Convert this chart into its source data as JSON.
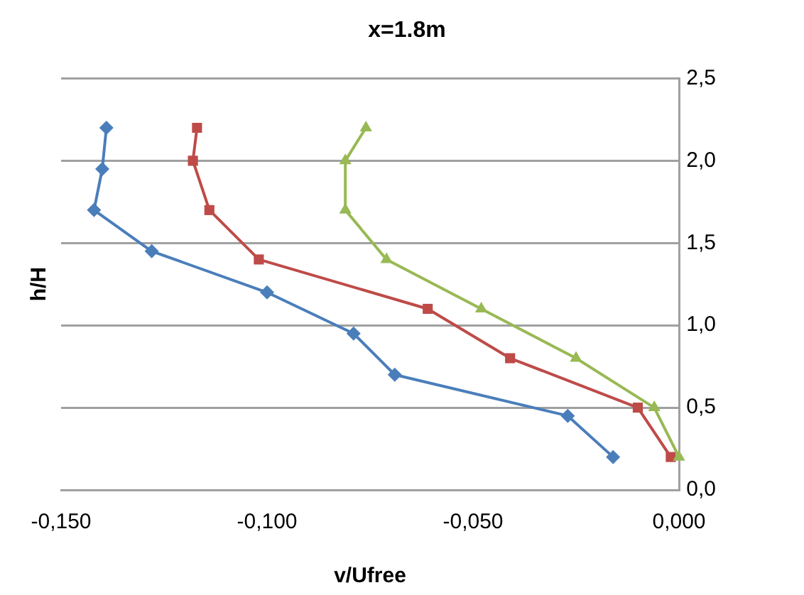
{
  "chart_data": {
    "type": "line",
    "title": "x=1.8m",
    "xlabel": "v/Ufree",
    "ylabel": "h/H",
    "xlim": [
      -0.15,
      0
    ],
    "xticks": [
      {
        "value": -0.15,
        "label": "-0,150"
      },
      {
        "value": -0.1,
        "label": "-0,100"
      },
      {
        "value": -0.05,
        "label": "-0,050"
      },
      {
        "value": 0,
        "label": "0,000"
      }
    ],
    "ylim": [
      0,
      2.5
    ],
    "yticks": [
      {
        "value": 0,
        "label": "0,0"
      },
      {
        "value": 0.5,
        "label": "0,5"
      },
      {
        "value": 1,
        "label": "1,0"
      },
      {
        "value": 1.5,
        "label": "1,5"
      },
      {
        "value": 2,
        "label": "2,0"
      },
      {
        "value": 2.5,
        "label": "2,5"
      }
    ],
    "grid": "y",
    "legend": false,
    "line_style": "solid",
    "series": [
      {
        "color": "#4a7ebb",
        "marker": "diamond",
        "x": [
          -0.139,
          -0.14,
          -0.142,
          -0.128,
          -0.1,
          -0.079,
          -0.069,
          -0.027,
          -0.016
        ],
        "values": [
          2.2,
          1.95,
          1.7,
          1.45,
          1.2,
          0.95,
          0.7,
          0.45,
          0.2
        ]
      },
      {
        "color": "#be4b48",
        "marker": "square",
        "x": [
          -0.117,
          -0.118,
          -0.114,
          -0.102,
          -0.061,
          -0.041,
          -0.01,
          -0.002
        ],
        "values": [
          2.2,
          2.0,
          1.7,
          1.4,
          1.1,
          0.8,
          0.5,
          0.2
        ]
      },
      {
        "color": "#98b954",
        "marker": "triangle",
        "x": [
          -0.076,
          -0.081,
          -0.081,
          -0.071,
          -0.048,
          -0.025,
          -0.006,
          0
        ],
        "values": [
          2.2,
          2.0,
          1.7,
          1.4,
          1.1,
          0.8,
          0.5,
          0.2
        ]
      }
    ]
  }
}
